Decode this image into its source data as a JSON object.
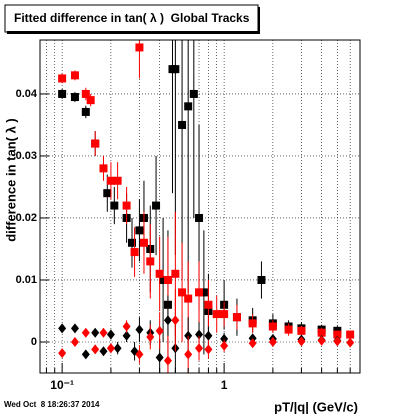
{
  "chart_data": {
    "type": "scatter",
    "title": "Fitted difference in tan( λ )  Global Tracks",
    "x_label": "pT/|q| (GeV/c)",
    "y_label": "difference in tan( λ )",
    "xlog": true,
    "grid": true,
    "xlim": [
      0.073,
      6.9
    ],
    "ylim": [
      -0.005,
      0.0487
    ],
    "xticks": [
      {
        "value": 0.1,
        "label": "10⁻¹"
      },
      1
    ],
    "xminor": [
      0.08,
      0.09,
      0.2,
      0.3,
      0.4,
      0.5,
      0.6,
      0.7,
      0.8,
      0.9,
      2,
      3,
      4,
      5,
      6
    ],
    "yticks": [
      0,
      0.01,
      0.02,
      0.03,
      0.04
    ],
    "series": [
      {
        "color": "#000000",
        "marker": "square",
        "x": [
          0.1,
          0.12,
          0.14,
          0.16,
          0.19,
          0.21,
          0.25,
          0.27,
          0.3,
          0.32,
          0.35,
          0.38,
          0.42,
          0.45,
          0.48,
          0.5,
          0.55,
          0.6,
          0.65,
          0.7,
          0.75,
          0.8,
          1.0,
          1.2,
          1.5,
          1.7,
          2,
          2.5,
          3,
          4,
          5
        ],
        "values": [
          0.04,
          0.0395,
          0.0371,
          0.032,
          0.024,
          0.022,
          0.02,
          0.016,
          0.018,
          0.02,
          0.015,
          0.022,
          0.01,
          0.006,
          0.044,
          0.044,
          0.035,
          0.038,
          0.04,
          0.02,
          0.008,
          0.005,
          0.006,
          0.004,
          0.0035,
          0.01,
          0.003,
          0.0025,
          0.0022,
          0.002,
          0.0018
        ],
        "errors": [
          0.0008,
          0.0008,
          0.001,
          0.002,
          0.003,
          0.003,
          0.004,
          0.004,
          0.005,
          0.006,
          0.007,
          0.008,
          0.01,
          0.012,
          0.02,
          0.03,
          0.025,
          0.03,
          0.02,
          0.015,
          0.01,
          0.006,
          0.004,
          0.003,
          0.002,
          0.003,
          0.0015,
          0.001,
          0.001,
          0.0008,
          0.0008
        ]
      },
      {
        "color": "#ff0000",
        "marker": "square",
        "x": [
          0.1,
          0.12,
          0.14,
          0.15,
          0.16,
          0.18,
          0.2,
          0.22,
          0.25,
          0.28,
          0.3,
          0.32,
          0.35,
          0.4,
          0.45,
          0.5,
          0.55,
          0.6,
          0.7,
          0.8,
          0.9,
          1.0,
          1.2,
          1.5,
          2,
          2.5,
          3,
          4,
          5,
          6
        ],
        "values": [
          0.0425,
          0.043,
          0.04,
          0.039,
          0.032,
          0.028,
          0.026,
          0.026,
          0.022,
          0.0145,
          0.0475,
          0.016,
          0.013,
          0.011,
          0.01,
          0.011,
          0.008,
          0.007,
          0.008,
          0.006,
          0.0045,
          0.0045,
          0.004,
          0.003,
          0.0025,
          0.002,
          0.0018,
          0.0015,
          0.0012,
          0.0012
        ],
        "errors": [
          0.0008,
          0.0008,
          0.001,
          0.001,
          0.002,
          0.002,
          0.003,
          0.003,
          0.003,
          0.004,
          0.005,
          0.005,
          0.006,
          0.006,
          0.007,
          0.01,
          0.008,
          0.006,
          0.005,
          0.004,
          0.003,
          0.002,
          0.002,
          0.0015,
          0.001,
          0.001,
          0.0008,
          0.0008,
          0.0006,
          0.0006
        ]
      },
      {
        "color": "#000000",
        "marker": "diamond",
        "x": [
          0.1,
          0.12,
          0.14,
          0.16,
          0.18,
          0.2,
          0.22,
          0.25,
          0.28,
          0.3,
          0.35,
          0.4,
          0.45,
          0.5,
          0.6,
          0.7,
          0.8,
          1.0,
          1.5,
          2,
          3,
          4,
          5
        ],
        "values": [
          0.0022,
          0.0022,
          -0.002,
          0.0015,
          -0.0015,
          0.0012,
          -0.001,
          0.001,
          -0.0015,
          0.002,
          0.0015,
          -0.0025,
          0.0035,
          -0.001,
          0.001,
          0.0012,
          0.001,
          0.0005,
          0.0006,
          0.0005,
          0.0004,
          0.0003,
          0.0002
        ],
        "errors": [
          0.0004,
          0.0004,
          0.0005,
          0.0006,
          0.0007,
          0.0008,
          0.001,
          0.001,
          0.0015,
          0.002,
          0.002,
          0.003,
          0.004,
          0.005,
          0.003,
          0.002,
          0.0015,
          0.001,
          0.0006,
          0.0005,
          0.0004,
          0.0004,
          0.0004
        ]
      },
      {
        "color": "#ff0000",
        "marker": "diamond",
        "x": [
          0.1,
          0.12,
          0.14,
          0.16,
          0.18,
          0.2,
          0.25,
          0.3,
          0.35,
          0.4,
          0.45,
          0.5,
          0.6,
          0.7,
          0.8,
          1.0,
          1.5,
          2,
          3,
          4,
          5,
          6
        ],
        "values": [
          -0.0018,
          0,
          0.0015,
          -0.0012,
          0.0015,
          -0.001,
          0.0025,
          -0.002,
          0.0008,
          0.0018,
          -0.003,
          0.0035,
          -0.002,
          -0.001,
          -0.0012,
          -0.0006,
          -0.0002,
          0,
          0.0001,
          0.0002,
          0.0001,
          -0.0001
        ],
        "errors": [
          0.0004,
          0.0004,
          0.0005,
          0.0006,
          0.0007,
          0.0008,
          0.001,
          0.0015,
          0.002,
          0.003,
          0.004,
          0.005,
          0.003,
          0.002,
          0.0015,
          0.001,
          0.0006,
          0.0005,
          0.0004,
          0.0004,
          0.0004,
          0.0004
        ]
      }
    ]
  },
  "footer": "Wed Oct  8 18:26:37 2014"
}
